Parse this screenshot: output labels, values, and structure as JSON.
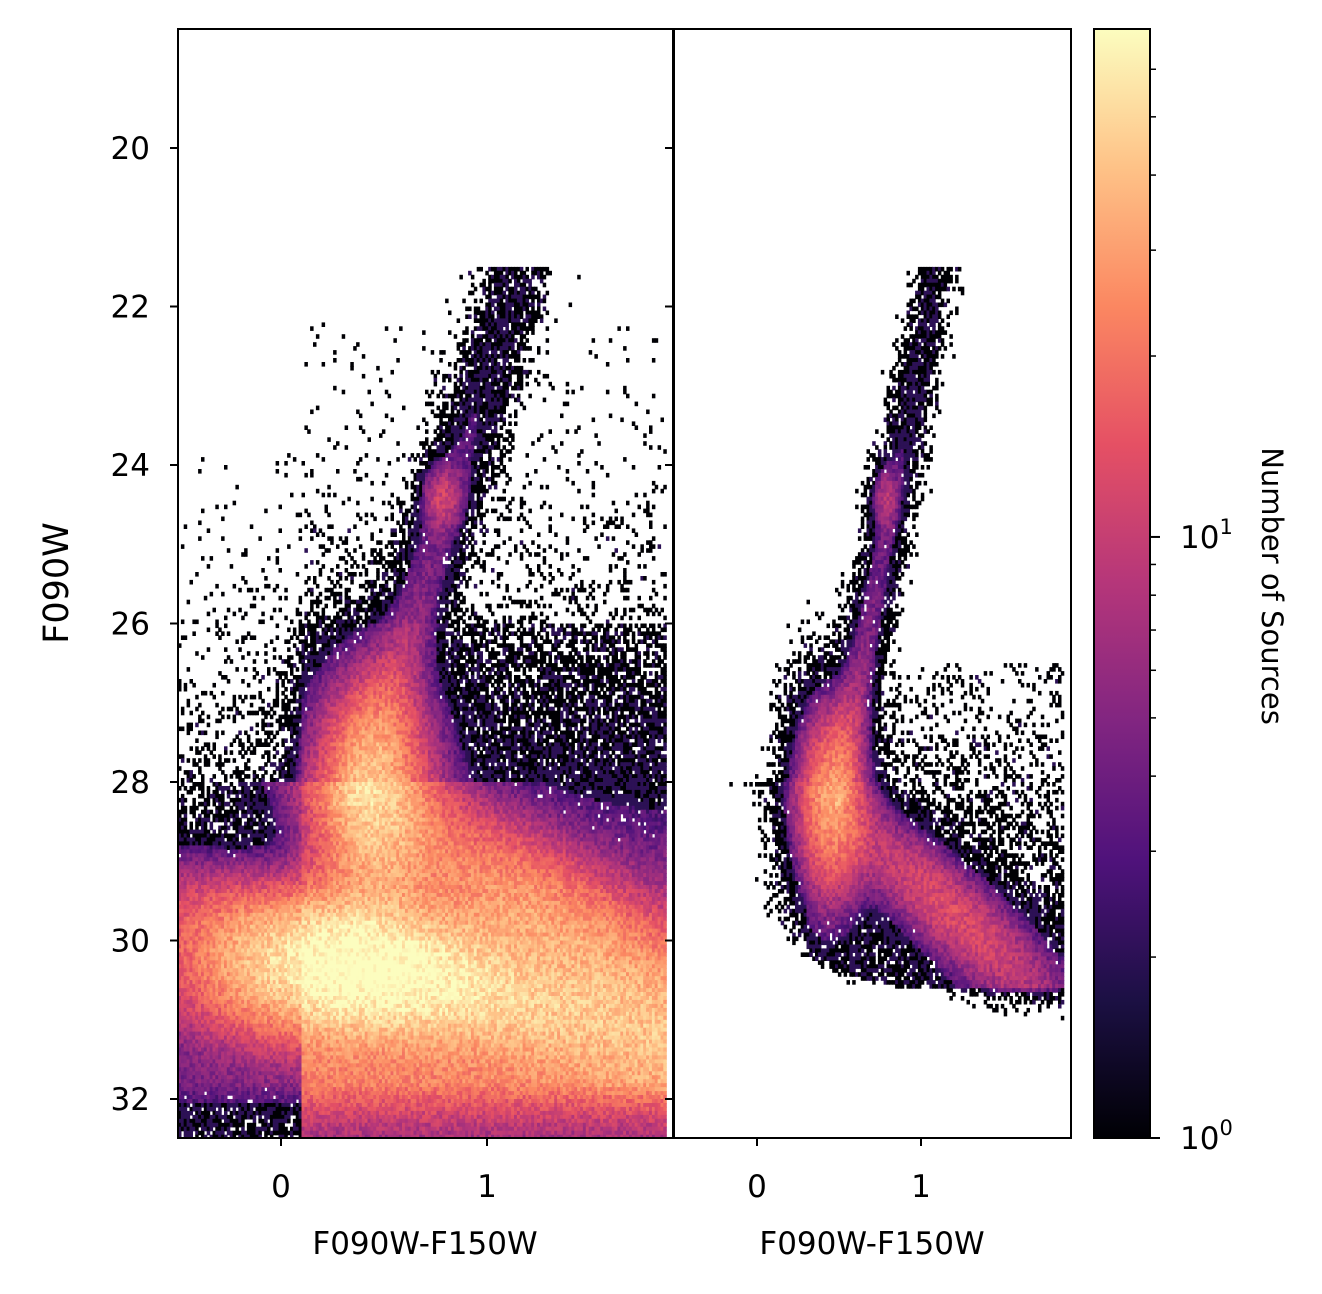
{
  "chart_data": [
    {
      "type": "heatmap",
      "panel": "left",
      "xlabel": "F090W-F150W",
      "ylabel": "F090W",
      "xlim": [
        -0.5,
        1.87
      ],
      "ylim": [
        32.5,
        18.5
      ],
      "y_inverted": true,
      "xticks": [
        0,
        1
      ],
      "yticks": [
        20,
        22,
        24,
        26,
        28,
        30,
        32
      ],
      "colormap": "magma",
      "color_scale": "log",
      "features": [
        {
          "feature": "red giant branch",
          "color_start": 0.4,
          "mag_start": 28.0,
          "color_end": 1.1,
          "mag_end": 22.0
        },
        {
          "feature": "red clump",
          "color": 0.78,
          "mag": 24.4,
          "count": 8
        },
        {
          "feature": "main sequence turnoff",
          "color": 0.45,
          "mag": 28.2,
          "count": 35
        },
        {
          "feature": "faint blue plume",
          "color": 0.3,
          "mag": 30.4,
          "count": 50
        },
        {
          "feature": "background ridge",
          "color_start": 0.3,
          "mag_start": 30.2,
          "color_end": 1.85,
          "mag_end": 31.3
        }
      ]
    },
    {
      "type": "heatmap",
      "panel": "right",
      "xlabel": "F090W-F150W",
      "xlim": [
        -0.5,
        1.87
      ],
      "ylim": [
        32.5,
        18.5
      ],
      "y_inverted": true,
      "xticks": [
        0,
        1
      ],
      "colormap": "magma",
      "color_scale": "log",
      "features": [
        {
          "feature": "red giant branch",
          "color_start": 0.5,
          "mag_start": 28.0,
          "color_end": 1.05,
          "mag_end": 22.0
        },
        {
          "feature": "red clump",
          "color": 0.78,
          "mag": 24.4,
          "count": 6
        },
        {
          "feature": "main sequence turnoff",
          "color": 0.45,
          "mag": 28.3,
          "count": 25
        },
        {
          "feature": "magnitude limit",
          "mag": 30.6
        }
      ]
    }
  ],
  "colorbar": {
    "label": "Number of Sources",
    "scale": "log",
    "min": 1,
    "max": 70,
    "colormap": "magma",
    "ticks": [
      {
        "base": "10",
        "exp": "0",
        "value": 1
      },
      {
        "base": "10",
        "exp": "1",
        "value": 10
      }
    ]
  },
  "colors": {
    "magma_stops": [
      "#000004",
      "#1c1044",
      "#4f127b",
      "#812581",
      "#b5367a",
      "#e55064",
      "#fb8761",
      "#fec287",
      "#fcfdbf"
    ]
  }
}
